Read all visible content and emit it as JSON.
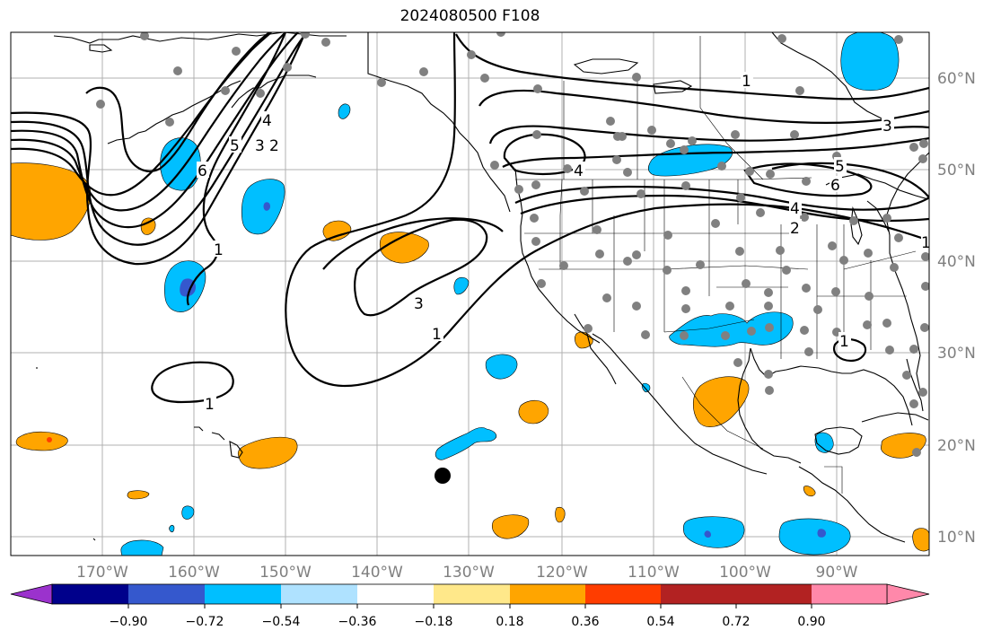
{
  "title": "2024080500 F108",
  "lon_labels": [
    "170°W",
    "160°W",
    "150°W",
    "140°W",
    "130°W",
    "120°W",
    "110°W",
    "100°W",
    "90°W"
  ],
  "lat_labels": [
    "60°N",
    "50°N",
    "40°N",
    "30°N",
    "20°N",
    "10°N"
  ],
  "colorbar": {
    "ticks": [
      "−0.90",
      "−0.72",
      "−0.54",
      "−0.36",
      "−0.18",
      "0.18",
      "0.36",
      "0.54",
      "0.72",
      "0.90"
    ],
    "colors": [
      "#9b32cd",
      "#00008b",
      "#3558cd",
      "#00bfff",
      "#afe2ff",
      "#ffffff",
      "#ffe88a",
      "#ffa500",
      "#ff3d00",
      "#b22222",
      "#ff88aa"
    ]
  },
  "contour_labels": [
    {
      "text": "1"
    },
    {
      "text": "2"
    },
    {
      "text": "3"
    },
    {
      "text": "4"
    },
    {
      "text": "5"
    },
    {
      "text": "6"
    },
    {
      "text": "1"
    },
    {
      "text": "3"
    },
    {
      "text": "1"
    },
    {
      "text": "1"
    },
    {
      "text": "3"
    },
    {
      "text": "4"
    },
    {
      "text": "5"
    },
    {
      "text": "6"
    },
    {
      "text": "2"
    },
    {
      "text": "4"
    },
    {
      "text": "1"
    },
    {
      "text": "1"
    }
  ]
}
